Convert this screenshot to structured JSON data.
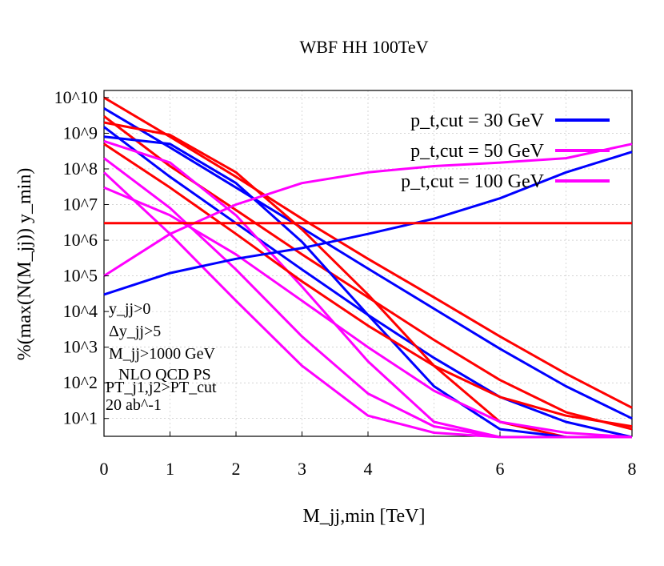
{
  "chart_data": {
    "type": "line",
    "title": "WBF HH 100TeV",
    "xlabel": "M_jj,min [TeV]",
    "ylabel": "%(max(N(M_jj)) y_min)",
    "y_scale": "log",
    "grid": true,
    "legend_placement": "top-right",
    "x_ticks": [
      "0",
      "1",
      "2",
      "3",
      "4",
      "6",
      "8"
    ],
    "y_ticks": [
      "10^1",
      "10^2",
      "10^3",
      "10^4",
      "10^5",
      "10^6",
      "10^7",
      "10^8",
      "10^9",
      "10^10"
    ],
    "annotations": [
      "y_jj>0",
      "Δy_jj>5",
      "M_jj>1000 GeV",
      "NLO QCD PS",
      "PT_j1,j2>PT_cut",
      "20 ab^-1"
    ],
    "legend": [
      {
        "label": "p_t,cut = 30 GeV",
        "color": "#0000ff"
      },
      {
        "label": "p_t,cut = 50 GeV",
        "color": "#ff00ff"
      },
      {
        "label": "p_t,cut = 100 GeV",
        "color": "#ff00ff"
      }
    ],
    "series": [
      {
        "color": "#ff0000",
        "x": [
          0,
          1,
          2,
          3,
          4,
          5,
          6,
          7,
          8
        ],
        "values": [
          10000000000,
          800000000,
          60000000,
          4000000,
          300000,
          25000,
          2000,
          180,
          20
        ]
      },
      {
        "color": "#0000ff",
        "x": [
          0,
          1,
          2,
          3,
          4,
          5,
          6,
          7,
          8
        ],
        "values": [
          5000000000,
          400000000,
          30000000,
          2200000,
          160000,
          12000,
          900,
          80,
          10
        ]
      },
      {
        "color": "#ff0000",
        "x": [
          0,
          1,
          2,
          3,
          4,
          5,
          6,
          7,
          8
        ],
        "values": [
          3000000000,
          120000000,
          7000000,
          400000,
          25000,
          1600,
          120,
          15,
          5
        ]
      },
      {
        "color": "#0000ff",
        "x": [
          0,
          1,
          2,
          3,
          4,
          5,
          6,
          7,
          8
        ],
        "values": [
          1500000000,
          60000000,
          3000000,
          150000,
          8000,
          500,
          40,
          8,
          3
        ]
      },
      {
        "color": "#ff0000",
        "x": [
          0,
          1,
          2,
          3,
          4,
          5,
          6,
          7,
          8
        ],
        "values": [
          2000000000,
          900000000,
          80000000,
          2000000,
          30000,
          300,
          8,
          3,
          3
        ]
      },
      {
        "color": "#0000ff",
        "x": [
          0,
          1,
          2,
          3,
          4,
          5,
          6,
          7,
          8
        ],
        "values": [
          800000000,
          500000000,
          40000000,
          900000,
          8000,
          80,
          5,
          3,
          3
        ]
      },
      {
        "color": "#ff00ff",
        "x": [
          0,
          1,
          2,
          3,
          4,
          5,
          6,
          7,
          8
        ],
        "values": [
          600000000,
          150000000,
          5000000,
          50000,
          400,
          8,
          3,
          3,
          3
        ]
      },
      {
        "color": "#ff0000",
        "x": [
          0,
          1,
          2,
          3,
          4,
          5,
          6,
          7,
          8
        ],
        "values": [
          500000000,
          30000000,
          1500000,
          70000,
          4000,
          300,
          40,
          12,
          6
        ]
      },
      {
        "color": "#ff00ff",
        "x": [
          0,
          1,
          2,
          3,
          4,
          5,
          6,
          7,
          8
        ],
        "values": [
          30000000,
          5000000,
          400000,
          20000,
          1000,
          60,
          8,
          4,
          3
        ]
      },
      {
        "color": "#ff00ff",
        "x": [
          0,
          1,
          2,
          3,
          4,
          5,
          6,
          7,
          8
        ],
        "values": [
          200000000,
          8000000,
          150000,
          2000,
          50,
          6,
          3,
          3,
          3
        ]
      },
      {
        "color": "#ff00ff",
        "x": [
          0,
          1,
          2,
          3,
          4,
          5,
          6,
          7,
          8
        ],
        "values": [
          80000000,
          1500000,
          20000,
          300,
          12,
          4,
          3,
          3,
          3
        ]
      },
      {
        "color": "#0000ff",
        "x": [
          0,
          1,
          2,
          3,
          4,
          5,
          6,
          7,
          8
        ],
        "values": [
          30000,
          120000,
          300000,
          600000,
          1500000,
          4000000,
          15000000,
          80000000,
          300000000
        ]
      },
      {
        "color": "#ff00ff",
        "x": [
          0,
          1,
          2,
          3,
          4,
          5,
          6,
          7,
          8
        ],
        "values": [
          100000,
          1500000,
          10000000,
          40000000,
          80000000,
          120000000,
          150000000,
          200000000,
          500000000
        ]
      },
      {
        "color": "#ff0000",
        "x": [
          0,
          8
        ],
        "values": [
          3000000,
          3000000
        ]
      }
    ]
  }
}
